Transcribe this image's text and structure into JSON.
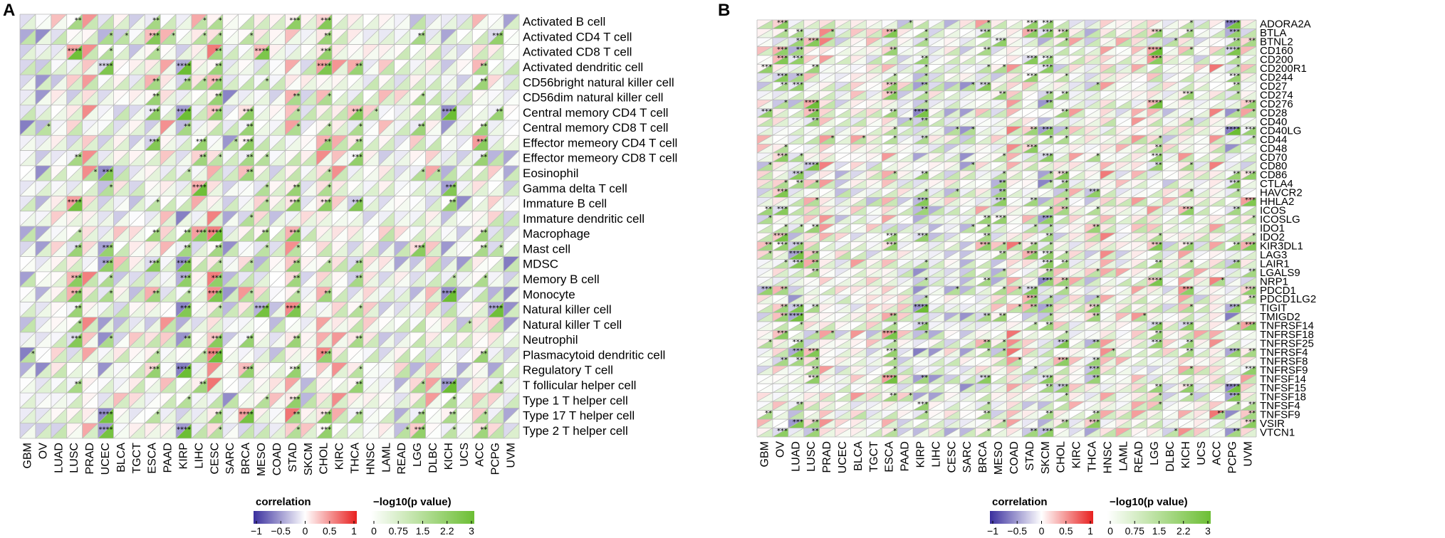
{
  "chart_data": [
    {
      "type": "heatmap",
      "panel_label": "A",
      "title": "",
      "rows": [
        "Activated B cell",
        "Activated CD4 T cell",
        "Activated CD8 T cell",
        "Activated dendritic cell",
        "CD56bright natural killer cell",
        "CD56dim natural killer cell",
        "Central memory CD4 T cell",
        "Central memory CD8 T cell",
        "Effector memeory CD4 T cell",
        "Effector memeory CD8 T cell",
        "Eosinophil",
        "Gamma delta T cell",
        "Immature  B cell",
        "Immature dendritic cell",
        "Macrophage",
        "Mast cell",
        "MDSC",
        "Memory B cell",
        "Monocyte",
        "Natural killer cell",
        "Natural killer T cell",
        "Neutrophil",
        "Plasmacytoid dendritic cell",
        "Regulatory T cell",
        "T follicular helper cell",
        "Type 1 T helper cell",
        "Type 17 T helper cell",
        "Type 2 T helper cell"
      ],
      "columns": [
        "GBM",
        "OV",
        "LUAD",
        "LUSC",
        "PRAD",
        "UCEC",
        "BLCA",
        "TGCT",
        "ESCA",
        "PAAD",
        "KIRP",
        "LIHC",
        "CESC",
        "SARC",
        "BRCA",
        "MESO",
        "COAD",
        "STAD",
        "SKCM",
        "CHOL",
        "KIRC",
        "THCA",
        "HNSC",
        "LAML",
        "READ",
        "LGG",
        "DLBC",
        "KICH",
        "UCS",
        "ACC",
        "PCPG",
        "UVM"
      ],
      "cell_encoding": "upper-left triangle = correlation, lower-right triangle = -log10(p value), asterisks = significance",
      "legends": {
        "correlation": {
          "title": "correlation",
          "ticks": [
            "−1",
            "−0.5",
            "0",
            "0.5",
            "1"
          ],
          "range": [
            -1,
            1
          ]
        },
        "pvalue": {
          "title": "−log10(p value)",
          "ticks": [
            "0",
            "0.75",
            "1.5",
            "2.2",
            "3"
          ],
          "range": [
            0,
            3
          ]
        }
      }
    },
    {
      "type": "heatmap",
      "panel_label": "B",
      "title": "",
      "rows": [
        "ADORA2A",
        "BTLA",
        "BTNL2",
        "CD160",
        "CD200",
        "CD200R1",
        "CD244",
        "CD27",
        "CD274",
        "CD276",
        "CD28",
        "CD40",
        "CD40LG",
        "CD44",
        "CD48",
        "CD70",
        "CD80",
        "CD86",
        "CTLA4",
        "HAVCR2",
        "HHLA2",
        "ICOS",
        "ICOSLG",
        "IDO1",
        "IDO2",
        "KIR3DL1",
        "LAG3",
        "LAIR1",
        "LGALS9",
        "NRP1",
        "PDCD1",
        "PDCD1LG2",
        "TIGIT",
        "TMIGD2",
        "TNFRSF14",
        "TNFRSF18",
        "TNFRSF25",
        "TNFRSF4",
        "TNFRSF8",
        "TNFRSF9",
        "TNFSF14",
        "TNFSF15",
        "TNFSF18",
        "TNFSF4",
        "TNFSF9",
        "VSIR",
        "VTCN1"
      ],
      "columns": [
        "GBM",
        "OV",
        "LUAD",
        "LUSC",
        "PRAD",
        "UCEC",
        "BLCA",
        "TGCT",
        "ESCA",
        "PAAD",
        "KIRP",
        "LIHC",
        "CESC",
        "SARC",
        "BRCA",
        "MESO",
        "COAD",
        "STAD",
        "SKCM",
        "CHOL",
        "KIRC",
        "THCA",
        "HNSC",
        "LAML",
        "READ",
        "LGG",
        "DLBC",
        "KICH",
        "UCS",
        "ACC",
        "PCPG",
        "UVM"
      ],
      "cell_encoding": "upper-left triangle = correlation, lower-right triangle = -log10(p value), asterisks = significance",
      "legends": {
        "correlation": {
          "title": "correlation",
          "ticks": [
            "−1",
            "−0.5",
            "0",
            "0.5",
            "1"
          ],
          "range": [
            -1,
            1
          ]
        },
        "pvalue": {
          "title": "−log10(p value)",
          "ticks": [
            "0",
            "0.75",
            "1.5",
            "2.2",
            "3"
          ],
          "range": [
            0,
            3
          ]
        }
      }
    }
  ],
  "colors": {
    "neg": "#3a2f9e",
    "mid": "#ffffff",
    "pos": "#e8201f",
    "p_low": "#ffffff",
    "p_high": "#6cbe34",
    "grid": "#b9b9b9"
  }
}
